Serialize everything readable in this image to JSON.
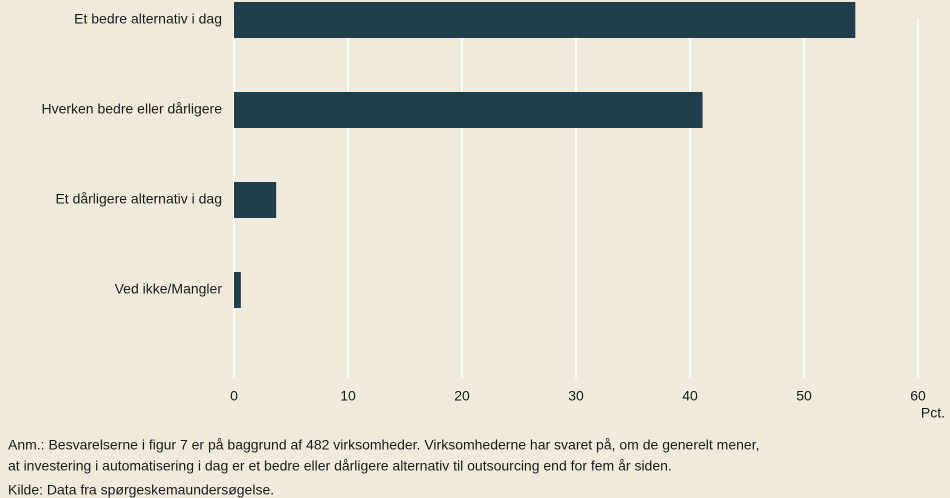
{
  "chart_data": {
    "type": "barh",
    "categories": [
      "Et bedre alternativ i dag",
      "Hverken bedre eller dårligere",
      "Et dårligere alternativ i dag",
      "Ved ikke/Mangler"
    ],
    "values": [
      54.5,
      41.1,
      3.7,
      0.6
    ],
    "color": "#1f3d4a",
    "xlim": [
      0,
      60
    ],
    "xticks": [
      0,
      10,
      20,
      30,
      40,
      50,
      60
    ],
    "grid": true,
    "xlabel": "Pct.",
    "notes": [
      "Anm.: Besvarelserne i figur 7 er på baggrund af 482 virksomheder. Virksomhederne har svaret på, om de generelt mener,",
      "at investering i automatisering i dag er et bedre eller dårligere alternativ til outsourcing end for fem år siden."
    ],
    "source": "Kilde: Data fra spørgeskemaundersøgelse."
  }
}
